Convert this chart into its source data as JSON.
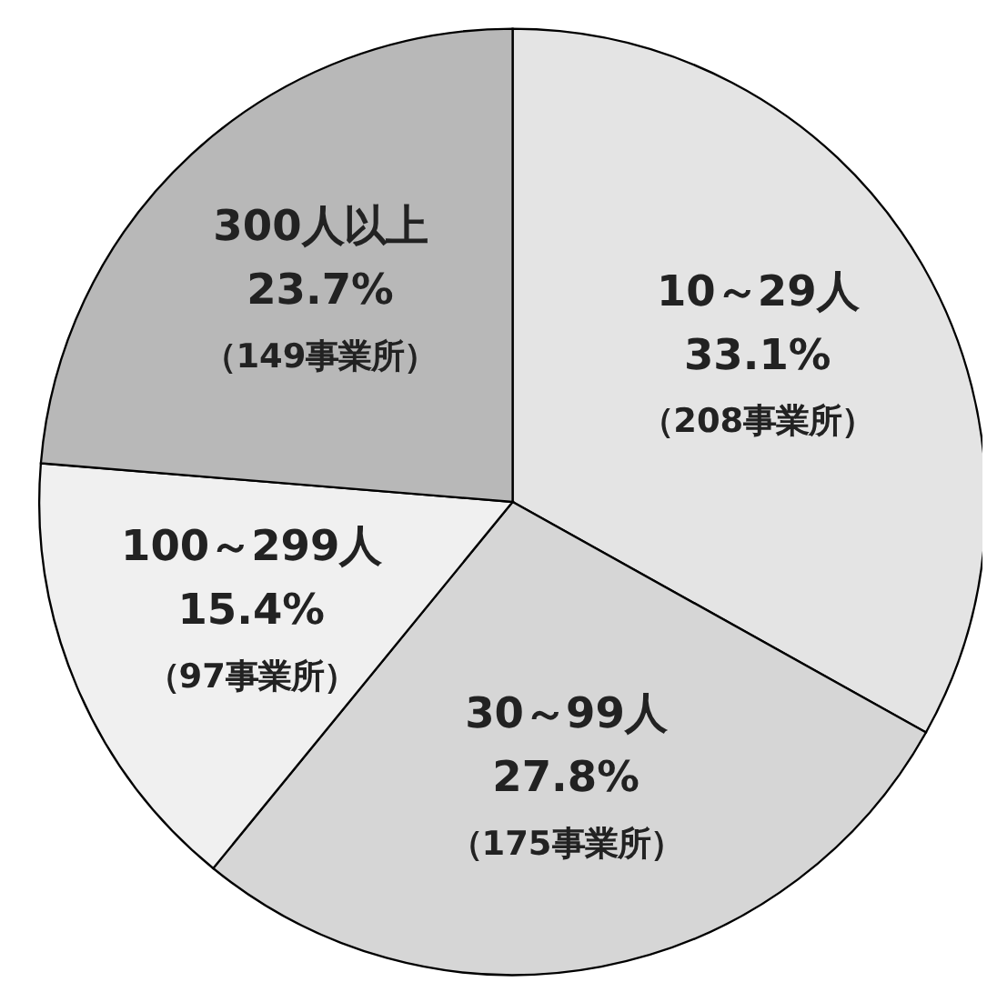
{
  "chart_data": {
    "type": "pie",
    "categories": [
      "10～29人",
      "30～99人",
      "100～299人",
      "300人以上"
    ],
    "values": [
      33.1,
      27.8,
      15.4,
      23.7
    ],
    "colors": [
      "#e4e4e4",
      "#d6d6d6",
      "#f0f0f0",
      "#b8b8b8"
    ],
    "value_labels": [
      "33.1%",
      "27.8%",
      "15.4%",
      "23.7%"
    ],
    "annotations": [
      {
        "text": "（208事業所）",
        "x": "10～29人"
      },
      {
        "text": "（175事業所）",
        "x": "30～99人"
      },
      {
        "text": "（97事業所）",
        "x": "100～299人"
      },
      {
        "text": "（149事業所）",
        "x": "300人以上"
      }
    ]
  }
}
